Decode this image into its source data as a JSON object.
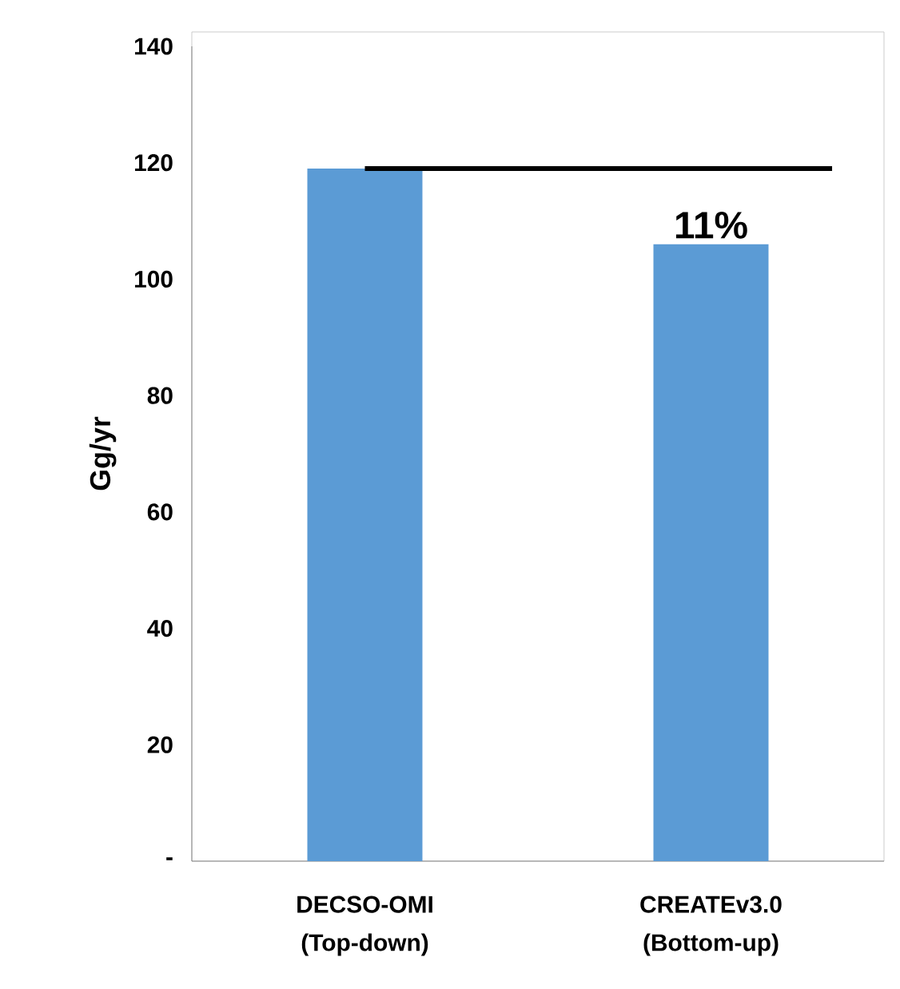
{
  "chart_data": {
    "type": "bar",
    "ylabel": "Gg/yr",
    "categories": [
      "DECSO-OMI (Top-down)",
      "CREATEv3.0 (Bottom-up)"
    ],
    "values": [
      119,
      106
    ],
    "color": "#5b9bd5",
    "ylim": [
      0,
      140
    ],
    "yticks": [
      {
        "value": 0,
        "label": "-"
      },
      20,
      40,
      60,
      80,
      100,
      120,
      140
    ],
    "ref_lines": [
      {
        "axis": "y",
        "value": 119,
        "color": "#000000"
      }
    ],
    "annotations": [
      {
        "text": "11%",
        "x": "CREATEv3.0 (Bottom-up)",
        "y": 106
      }
    ]
  }
}
